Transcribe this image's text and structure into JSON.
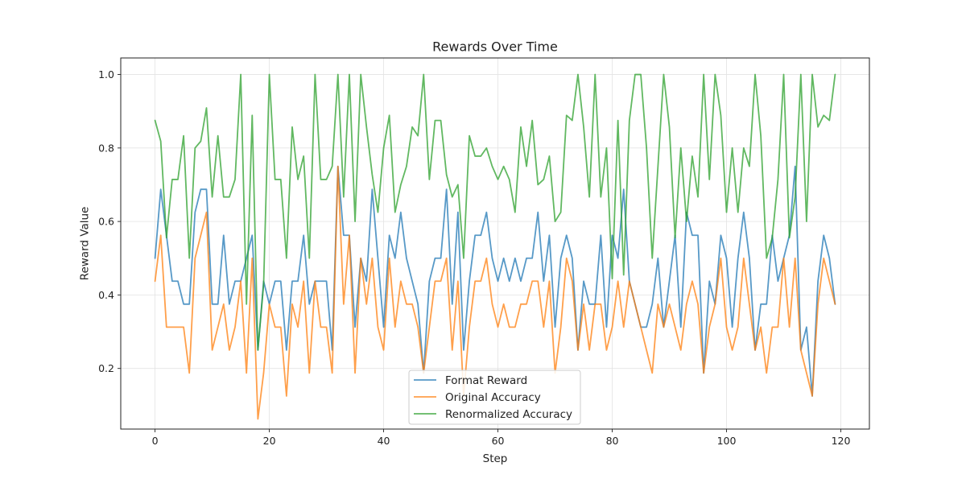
{
  "chart_data": {
    "type": "line",
    "title": "Rewards Over Time",
    "xlabel": "Step",
    "ylabel": "Reward Value",
    "xlim": [
      -6,
      125
    ],
    "ylim": [
      0.035,
      1.045
    ],
    "xticks": [
      0,
      20,
      40,
      60,
      80,
      100,
      120
    ],
    "yticks": [
      0.2,
      0.4,
      0.6,
      0.8,
      1.0
    ],
    "xtick_labels": [
      "0",
      "20",
      "40",
      "60",
      "80",
      "100",
      "120"
    ],
    "ytick_labels": [
      "0.2",
      "0.4",
      "0.6",
      "0.8",
      "1.0"
    ],
    "grid": true,
    "legend_position": "bottom-center",
    "series": [
      {
        "name": "Format Reward",
        "color": "#1f77b4",
        "values": [
          0.5,
          0.6875,
          0.5625,
          0.4375,
          0.4375,
          0.375,
          0.375,
          0.625,
          0.6875,
          0.6875,
          0.375,
          0.375,
          0.5625,
          0.375,
          0.4375,
          0.4375,
          0.5,
          0.5625,
          0.25,
          0.4375,
          0.375,
          0.4375,
          0.4375,
          0.25,
          0.4375,
          0.4375,
          0.5625,
          0.375,
          0.4375,
          0.4375,
          0.4375,
          0.25,
          0.75,
          0.5625,
          0.5625,
          0.3125,
          0.5,
          0.4375,
          0.6875,
          0.5,
          0.3125,
          0.5625,
          0.5,
          0.625,
          0.5,
          0.4375,
          0.375,
          0.1875,
          0.4375,
          0.5,
          0.5,
          0.6875,
          0.375,
          0.625,
          0.25,
          0.4375,
          0.5625,
          0.5625,
          0.625,
          0.5,
          0.4375,
          0.5,
          0.4375,
          0.5,
          0.4375,
          0.5,
          0.5,
          0.625,
          0.4375,
          0.5625,
          0.3125,
          0.5,
          0.5625,
          0.5,
          0.25,
          0.4375,
          0.375,
          0.375,
          0.5625,
          0.3125,
          0.5625,
          0.5,
          0.6875,
          0.4375,
          0.375,
          0.3125,
          0.3125,
          0.375,
          0.5,
          0.3125,
          0.4375,
          0.5625,
          0.3125,
          0.625,
          0.5625,
          0.5625,
          0.1875,
          0.4375,
          0.375,
          0.5625,
          0.5,
          0.3125,
          0.5,
          0.625,
          0.5,
          0.25,
          0.375,
          0.375,
          0.5625,
          0.4375,
          0.5,
          0.5625,
          0.75,
          0.25,
          0.3125,
          0.125,
          0.4375,
          0.5625,
          0.5,
          0.375
        ]
      },
      {
        "name": "Original Accuracy",
        "color": "#ff7f0e",
        "values": [
          0.4375,
          0.5625,
          0.3125,
          0.3125,
          0.3125,
          0.3125,
          0.1875,
          0.5,
          0.5625,
          0.625,
          0.25,
          0.3125,
          0.375,
          0.25,
          0.3125,
          0.4375,
          0.1875,
          0.5,
          0.0625,
          0.1875,
          0.375,
          0.3125,
          0.3125,
          0.125,
          0.375,
          0.3125,
          0.4375,
          0.1875,
          0.4375,
          0.3125,
          0.3125,
          0.1875,
          0.75,
          0.375,
          0.5625,
          0.1875,
          0.5,
          0.375,
          0.5,
          0.3125,
          0.25,
          0.5,
          0.3125,
          0.4375,
          0.375,
          0.375,
          0.3125,
          0.1875,
          0.3125,
          0.4375,
          0.4375,
          0.5,
          0.25,
          0.4375,
          0.125,
          0.3125,
          0.4375,
          0.4375,
          0.5,
          0.375,
          0.3125,
          0.375,
          0.3125,
          0.3125,
          0.375,
          0.375,
          0.4375,
          0.4375,
          0.3125,
          0.4375,
          0.1875,
          0.3125,
          0.5,
          0.4375,
          0.25,
          0.375,
          0.25,
          0.375,
          0.375,
          0.25,
          0.3125,
          0.4375,
          0.3125,
          0.4375,
          0.375,
          0.3125,
          0.25,
          0.1875,
          0.375,
          0.3125,
          0.375,
          0.3125,
          0.25,
          0.375,
          0.4375,
          0.375,
          0.1875,
          0.3125,
          0.375,
          0.5,
          0.3125,
          0.25,
          0.3125,
          0.5,
          0.375,
          0.25,
          0.3125,
          0.1875,
          0.3125,
          0.3125,
          0.5,
          0.3125,
          0.5,
          0.25,
          0.1875,
          0.125,
          0.375,
          0.5,
          0.4375,
          0.375
        ]
      },
      {
        "name": "Renormalized Accuracy",
        "color": "#2ca02c",
        "values": [
          0.875,
          0.8182,
          0.5556,
          0.7143,
          0.7143,
          0.8333,
          0.5,
          0.8,
          0.8182,
          0.9091,
          0.6667,
          0.8333,
          0.6667,
          0.6667,
          0.7143,
          1.0,
          0.375,
          0.8889,
          0.25,
          0.4286,
          1.0,
          0.7143,
          0.7143,
          0.5,
          0.8571,
          0.7143,
          0.7778,
          0.5,
          1.0,
          0.7143,
          0.7143,
          0.75,
          1.0,
          0.6667,
          1.0,
          0.6,
          1.0,
          0.8571,
          0.7273,
          0.625,
          0.8,
          0.8889,
          0.625,
          0.7,
          0.75,
          0.8571,
          0.8333,
          1.0,
          0.7143,
          0.875,
          0.875,
          0.7273,
          0.6667,
          0.7,
          0.5,
          0.8333,
          0.7778,
          0.7778,
          0.8,
          0.75,
          0.7143,
          0.75,
          0.7143,
          0.625,
          0.8571,
          0.75,
          0.875,
          0.7,
          0.7143,
          0.7778,
          0.6,
          0.625,
          0.8889,
          0.875,
          1.0,
          0.8571,
          0.6667,
          1.0,
          0.6667,
          0.8,
          0.4444,
          0.875,
          0.4545,
          0.875,
          1.0,
          1.0,
          0.8,
          0.5,
          0.75,
          1.0,
          0.8571,
          0.5556,
          0.8,
          0.6,
          0.7778,
          0.6667,
          1.0,
          0.7143,
          1.0,
          0.8889,
          0.625,
          0.8,
          0.625,
          0.8,
          0.75,
          1.0,
          0.8333,
          0.5,
          0.5556,
          0.7143,
          1.0,
          0.5556,
          0.6667,
          1.0,
          0.6,
          1.0,
          0.8571,
          0.8889,
          0.875,
          1.0
        ]
      }
    ]
  }
}
